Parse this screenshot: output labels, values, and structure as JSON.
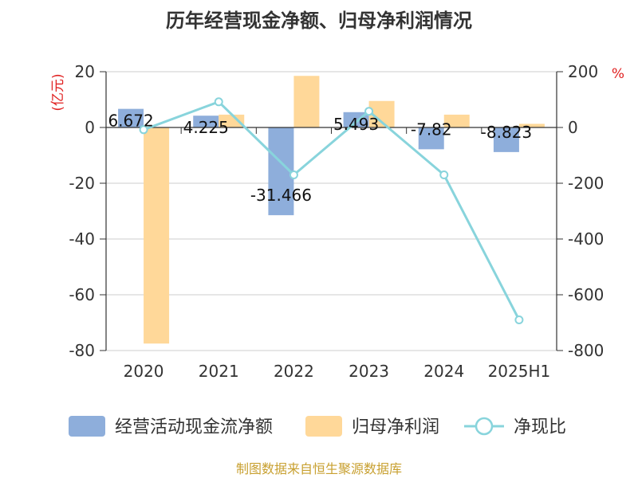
{
  "chart_data": {
    "type": "bar",
    "title": "历年经营现金净额、归母净利润情况",
    "categories": [
      "2020",
      "2021",
      "2022",
      "2023",
      "2024",
      "2025H1"
    ],
    "left_axis": {
      "unit": "(亿元)",
      "ylim": [
        -80,
        20
      ],
      "ticks": [
        "20",
        "0",
        "-20",
        "-40",
        "-60",
        "-80"
      ]
    },
    "right_axis": {
      "unit": "%",
      "ylim": [
        -800,
        200
      ],
      "ticks": [
        "200",
        "0",
        "-200",
        "-400",
        "-600",
        "-800"
      ]
    },
    "series": [
      {
        "name": "经营活动现金流净额",
        "kind": "bar",
        "axis": "left",
        "color": "#8eaedb",
        "values": [
          6.672,
          4.225,
          -31.466,
          5.493,
          -7.82,
          -8.823
        ],
        "labels": [
          "6.672",
          "4.225",
          "-31.466",
          "5.493",
          "-7.82",
          "-8.823"
        ]
      },
      {
        "name": "归母净利润",
        "kind": "bar",
        "axis": "left",
        "color": "#ffd899",
        "values": [
          -77.5,
          4.6,
          18.5,
          9.5,
          4.6,
          1.3
        ]
      },
      {
        "name": "净现比",
        "kind": "line",
        "axis": "right",
        "color": "#88d4dc",
        "values": [
          -8,
          92,
          -170,
          58,
          -170,
          -690
        ]
      }
    ],
    "grid": true,
    "legend_position": "bottom"
  },
  "source": "制图数据来自恒生聚源数据库"
}
